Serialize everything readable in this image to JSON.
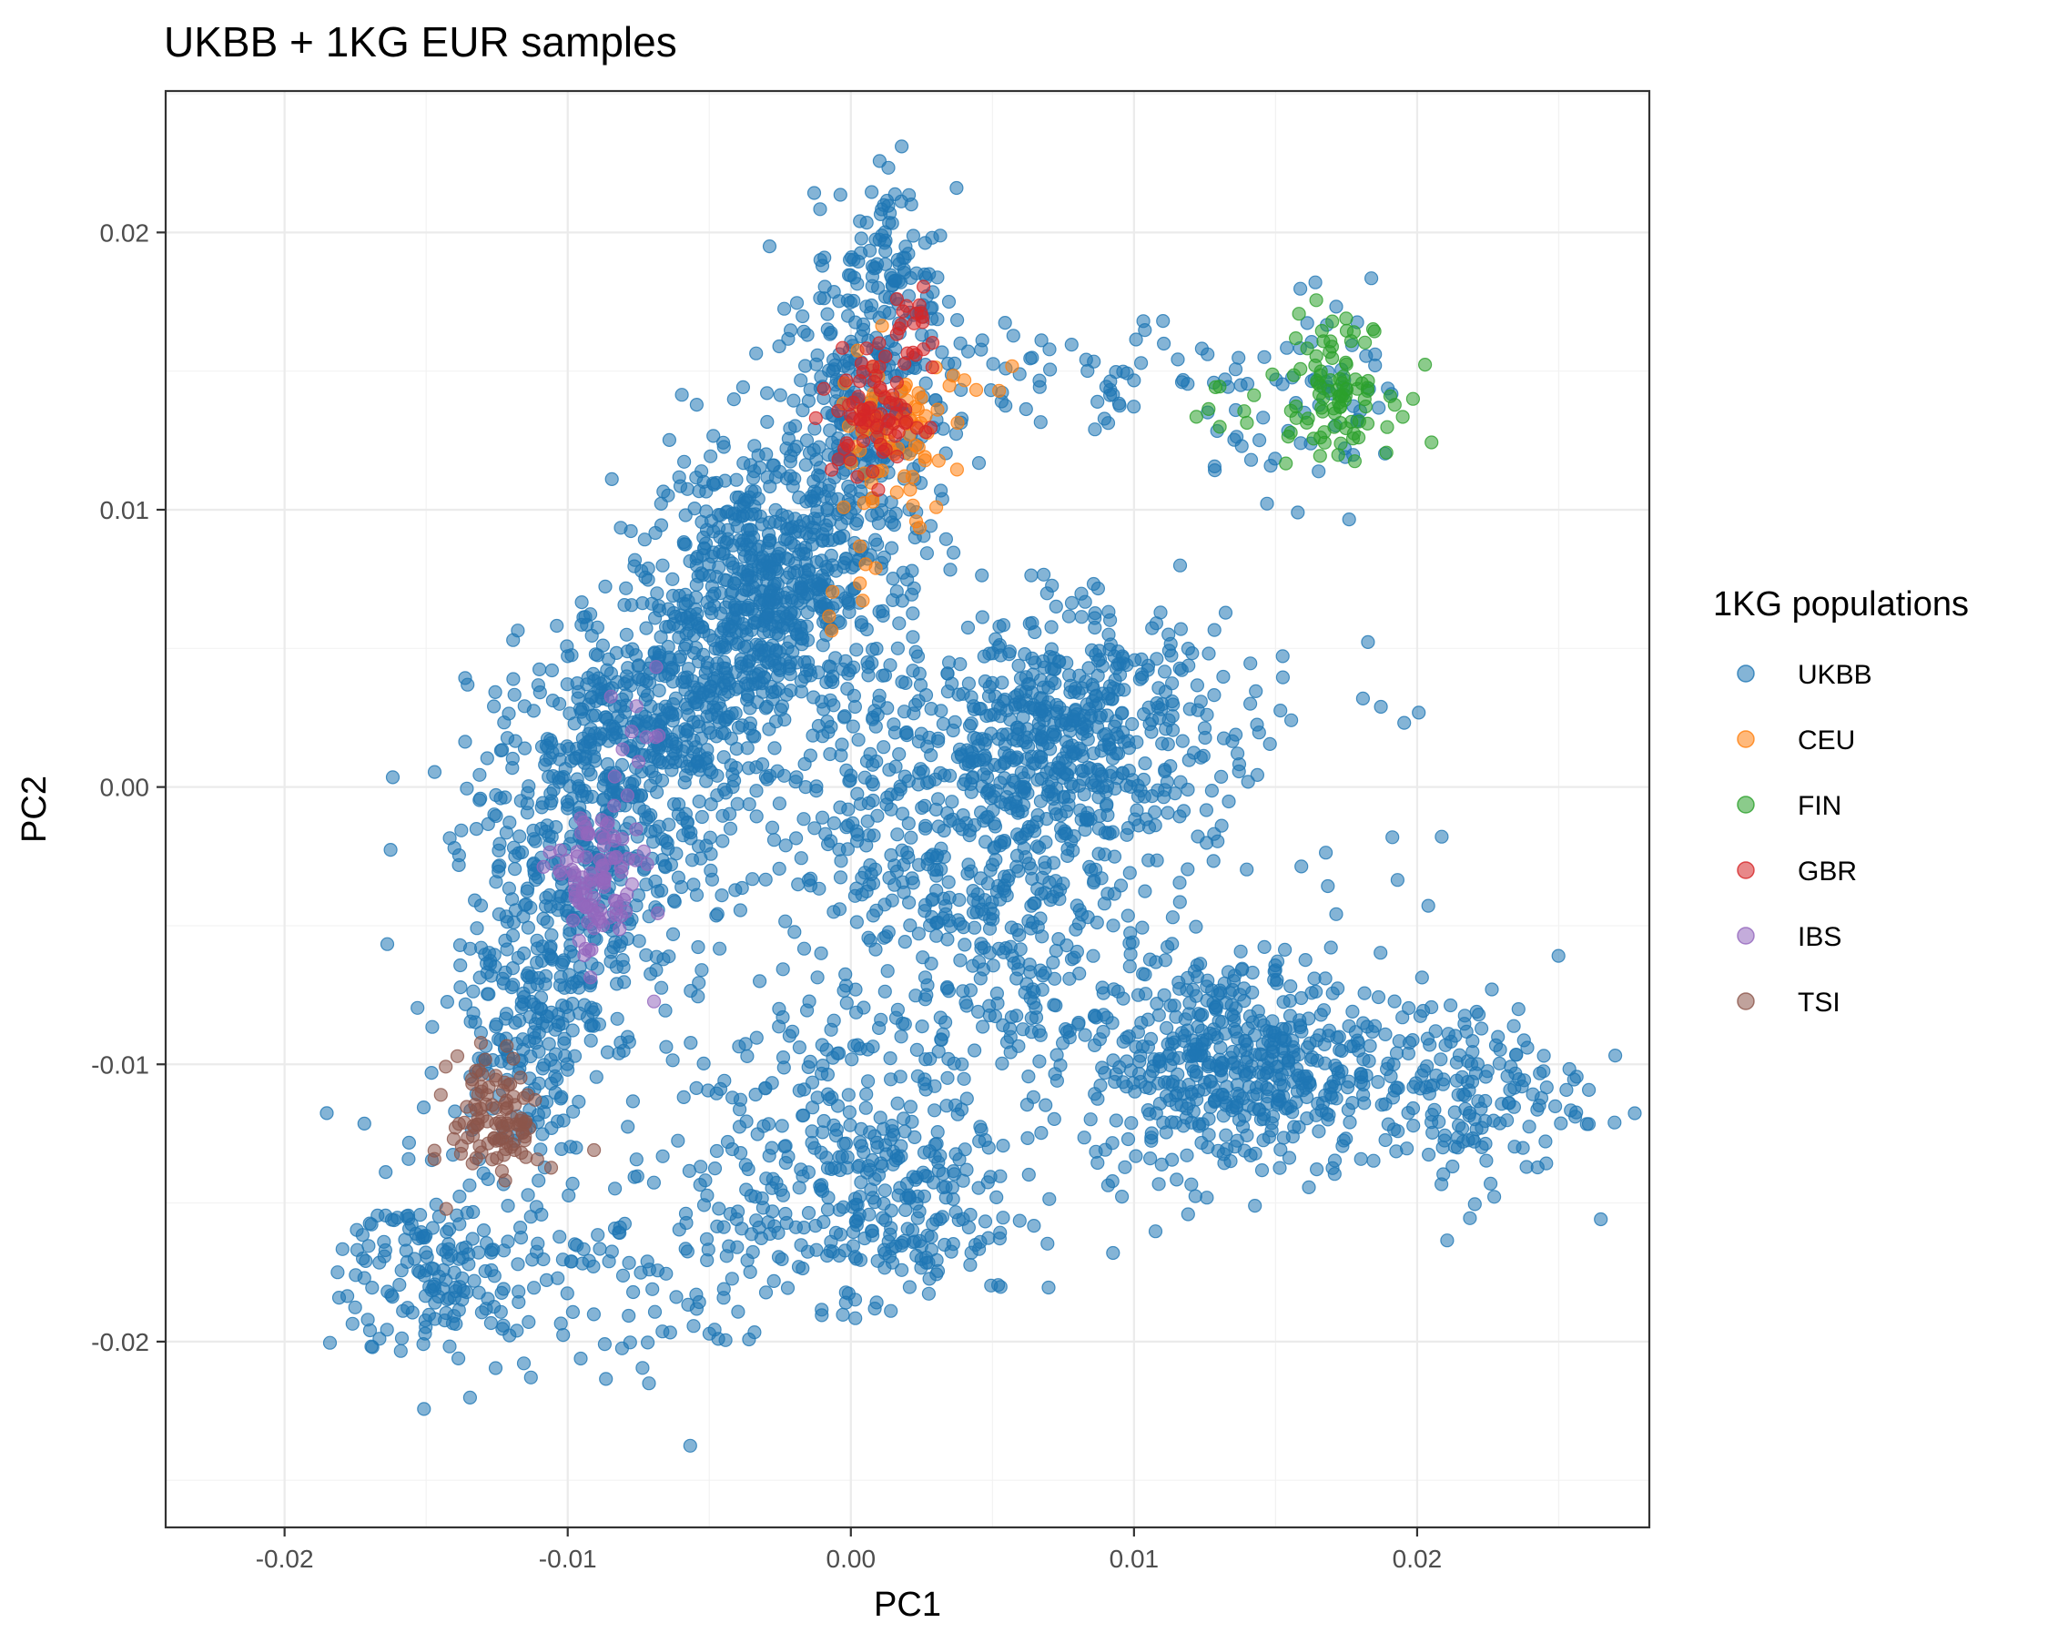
{
  "chart_data": {
    "type": "scatter",
    "title": "UKBB + 1KG EUR samples",
    "xlabel": "PC1",
    "ylabel": "PC2",
    "xlim": [
      -0.0242,
      0.0282
    ],
    "ylim": [
      -0.0267,
      0.0251
    ],
    "x_ticks": [
      -0.02,
      -0.01,
      0.0,
      0.01,
      0.02
    ],
    "x_tick_labels": [
      "-0.02",
      "-0.01",
      "0.00",
      "0.01",
      "0.02"
    ],
    "y_ticks": [
      -0.02,
      -0.01,
      0.0,
      0.01,
      0.02
    ],
    "y_tick_labels": [
      "-0.02",
      "-0.01",
      "0.00",
      "0.01",
      "0.02"
    ],
    "grid": true,
    "legend": {
      "title": "1KG populations",
      "position": "right"
    },
    "series": [
      {
        "name": "UKBB",
        "color": "#1f77b4",
        "clusters": [
          {
            "center": [
              -0.003,
              0.007
            ],
            "spread": [
              0.002,
              0.0025
            ],
            "n": 650
          },
          {
            "center": [
              0.0005,
              0.0135
            ],
            "spread": [
              0.0016,
              0.0028
            ],
            "n": 320
          },
          {
            "center": [
              0.0015,
              0.019
            ],
            "spread": [
              0.0009,
              0.0015
            ],
            "n": 80
          },
          {
            "center": [
              -0.007,
              0.002
            ],
            "spread": [
              0.0022,
              0.0022
            ],
            "n": 420
          },
          {
            "center": [
              -0.0095,
              -0.003
            ],
            "spread": [
              0.0022,
              0.0028
            ],
            "n": 380
          },
          {
            "center": [
              -0.0115,
              -0.009
            ],
            "spread": [
              0.0014,
              0.002
            ],
            "n": 160
          },
          {
            "center": [
              -0.0145,
              -0.0175
            ],
            "spread": [
              0.0017,
              0.0018
            ],
            "n": 180
          },
          {
            "center": [
              0.0075,
              0.002
            ],
            "spread": [
              0.0028,
              0.0022
            ],
            "n": 500
          },
          {
            "center": [
              0.0025,
              0.0
            ],
            "spread": [
              0.003,
              0.0028
            ],
            "n": 220
          },
          {
            "center": [
              0.0055,
              -0.005
            ],
            "spread": [
              0.0032,
              0.003
            ],
            "n": 320
          },
          {
            "center": [
              0.0135,
              -0.01
            ],
            "spread": [
              0.0026,
              0.002
            ],
            "n": 520
          },
          {
            "center": [
              0.0215,
              -0.011
            ],
            "spread": [
              0.0022,
              0.0018
            ],
            "n": 180
          },
          {
            "center": [
              0.001,
              -0.015
            ],
            "spread": [
              0.0025,
              0.0018
            ],
            "n": 230
          },
          {
            "center": [
              -0.006,
              -0.017
            ],
            "spread": [
              0.0035,
              0.0022
            ],
            "n": 120
          },
          {
            "center": [
              -0.001,
              -0.011
            ],
            "spread": [
              0.003,
              0.0025
            ],
            "n": 160
          },
          {
            "center": [
              0.0085,
              0.0145
            ],
            "spread": [
              0.003,
              0.0012
            ],
            "n": 70
          },
          {
            "center": [
              0.017,
              0.014
            ],
            "spread": [
              0.0017,
              0.0016
            ],
            "n": 60
          },
          {
            "center": [
              0.0145,
              0.0
            ],
            "spread": [
              0.004,
              0.0035
            ],
            "n": 40
          }
        ]
      },
      {
        "name": "CEU",
        "color": "#ff7f0e",
        "clusters": [
          {
            "center": [
              0.0015,
              0.0125
            ],
            "spread": [
              0.001,
              0.0016
            ],
            "n": 70
          },
          {
            "center": [
              0.0045,
              0.0145
            ],
            "spread": [
              0.001,
              0.0006
            ],
            "n": 8
          },
          {
            "center": [
              0.0,
              0.0085
            ],
            "spread": [
              0.0008,
              0.002
            ],
            "n": 12
          }
        ]
      },
      {
        "name": "FIN",
        "color": "#2ca02c",
        "clusters": [
          {
            "center": [
              0.017,
              0.0145
            ],
            "spread": [
              0.0011,
              0.0012
            ],
            "n": 95
          },
          {
            "center": [
              0.013,
              0.0135
            ],
            "spread": [
              0.0008,
              0.0005
            ],
            "n": 6
          }
        ]
      },
      {
        "name": "GBR",
        "color": "#d62728",
        "clusters": [
          {
            "center": [
              0.001,
              0.0135
            ],
            "spread": [
              0.0008,
              0.0012
            ],
            "n": 75
          },
          {
            "center": [
              0.002,
              0.017
            ],
            "spread": [
              0.0006,
              0.0006
            ],
            "n": 15
          }
        ]
      },
      {
        "name": "IBS",
        "color": "#9467bd",
        "clusters": [
          {
            "center": [
              -0.009,
              -0.0035
            ],
            "spread": [
              0.0008,
              0.0014
            ],
            "n": 100
          },
          {
            "center": [
              -0.0075,
              0.0015
            ],
            "spread": [
              0.0006,
              0.0012
            ],
            "n": 10
          }
        ]
      },
      {
        "name": "TSI",
        "color": "#8c564b",
        "clusters": [
          {
            "center": [
              -0.0125,
              -0.012
            ],
            "spread": [
              0.0008,
              0.0012
            ],
            "n": 105
          }
        ]
      }
    ]
  }
}
